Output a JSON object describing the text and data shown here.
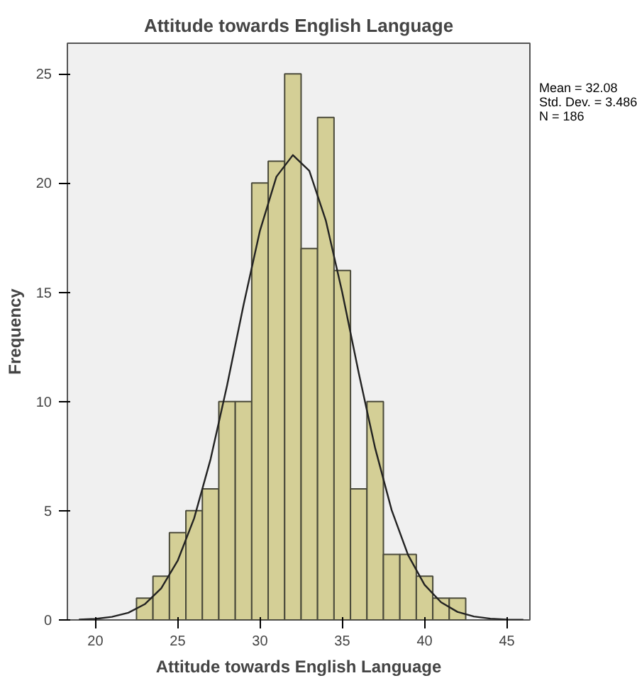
{
  "chart_data": {
    "type": "histogram",
    "title": "Attitude towards English Language",
    "xlabel": "Attitude towards English Language",
    "ylabel": "Frequency",
    "bins": [
      22.5,
      23.5,
      24.5,
      25.5,
      26.5,
      27.5,
      28.5,
      29.5,
      30.5,
      31.5,
      32.5,
      33.5,
      34.5,
      35.5,
      36.5,
      37.5,
      38.5,
      39.5,
      40.5,
      41.5,
      42.5
    ],
    "values": [
      1,
      2,
      4,
      5,
      6,
      10,
      10,
      20,
      21,
      25,
      17,
      23,
      16,
      6,
      10,
      3,
      3,
      2,
      1,
      1
    ],
    "color": "#d4cf96",
    "series": [
      {
        "type": "line",
        "color": "#222222",
        "x": [
          19,
          20,
          21,
          22,
          23,
          24,
          25,
          26,
          27,
          28,
          29,
          30,
          31,
          32,
          33,
          34,
          35,
          36,
          37,
          38,
          39,
          40,
          41,
          42,
          43,
          44,
          45,
          46
        ],
        "values": [
          0.02,
          0.05,
          0.14,
          0.33,
          0.72,
          1.45,
          2.71,
          4.65,
          7.36,
          10.73,
          14.41,
          17.82,
          20.29,
          21.28,
          20.56,
          18.29,
          14.99,
          11.31,
          7.86,
          5.03,
          2.97,
          1.61,
          0.81,
          0.37,
          0.16,
          0.06,
          0.02,
          0.01
        ]
      }
    ],
    "xlim": [
      18.3,
      46.4
    ],
    "ylim": [
      0,
      26.4
    ],
    "xticks": [
      20,
      25,
      30,
      35,
      40,
      45
    ],
    "yticks": [
      0,
      5,
      10,
      15,
      20,
      25
    ],
    "grid": false,
    "annotations": [
      "Mean = 32.08",
      "Std. Dev. = 3.486",
      "N = 186"
    ]
  }
}
